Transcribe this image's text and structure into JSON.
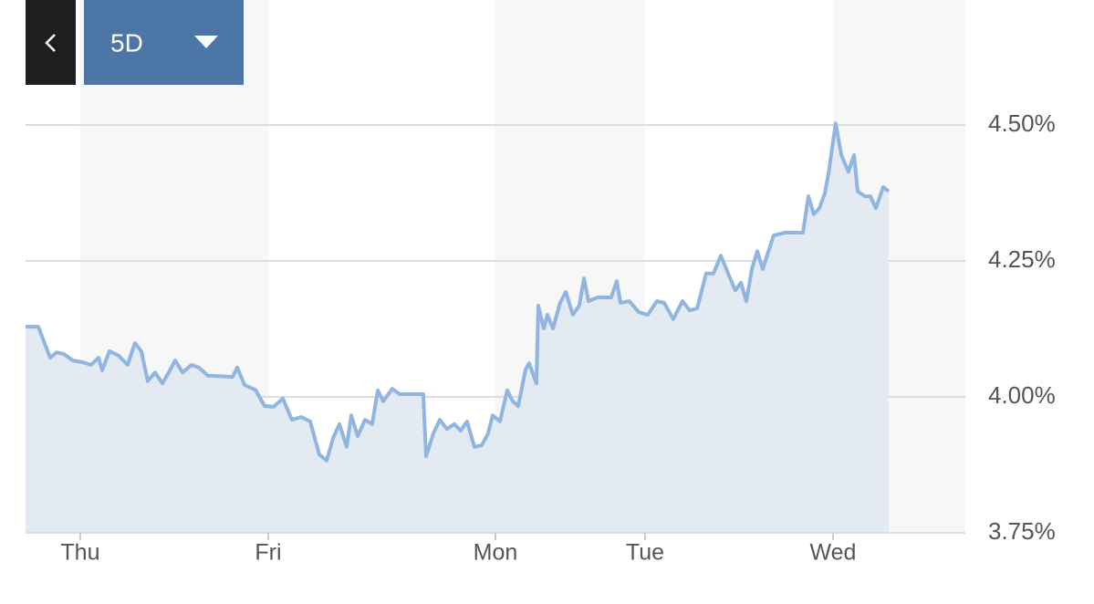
{
  "controls": {
    "range": "5D"
  },
  "chart_data": {
    "type": "line",
    "color": "#8fb5e0",
    "fill_color": "#e1e8f0",
    "band_color": "#f7f7f7",
    "grid": true,
    "xlim": [
      -0.291,
      4.709
    ],
    "xticks": [
      {
        "value": 0,
        "label": "Thu"
      },
      {
        "value": 1,
        "label": "Fri"
      },
      {
        "value": 2.209,
        "label": "Mon"
      },
      {
        "value": 3.005,
        "label": "Tue"
      },
      {
        "value": 4.005,
        "label": "Wed"
      }
    ],
    "ylim": [
      3.75,
      4.73
    ],
    "yticks": [
      {
        "value": 3.75,
        "label": "3.75%"
      },
      {
        "value": 4.0,
        "label": "4.00%"
      },
      {
        "value": 4.25,
        "label": "4.25%"
      },
      {
        "value": 4.5,
        "label": "4.50%"
      }
    ],
    "x": [
      -0.291,
      -0.223,
      -0.16,
      -0.126,
      -0.087,
      -0.039,
      0.01,
      0.058,
      0.097,
      0.117,
      0.155,
      0.204,
      0.252,
      0.291,
      0.325,
      0.359,
      0.398,
      0.437,
      0.471,
      0.505,
      0.544,
      0.592,
      0.631,
      0.68,
      0.811,
      0.835,
      0.874,
      0.932,
      0.981,
      1.029,
      1.078,
      1.126,
      1.175,
      1.223,
      1.272,
      1.311,
      1.345,
      1.379,
      1.417,
      1.442,
      1.476,
      1.515,
      1.553,
      1.583,
      1.612,
      1.66,
      1.699,
      1.825,
      1.84,
      1.879,
      1.913,
      1.951,
      1.99,
      2.024,
      2.058,
      2.097,
      2.136,
      2.17,
      2.194,
      2.233,
      2.272,
      2.301,
      2.33,
      2.369,
      2.388,
      2.427,
      2.437,
      2.466,
      2.485,
      2.515,
      2.553,
      2.583,
      2.621,
      2.655,
      2.68,
      2.704,
      2.752,
      2.825,
      2.854,
      2.874,
      2.922,
      2.971,
      3.019,
      3.068,
      3.107,
      3.155,
      3.204,
      3.243,
      3.282,
      3.33,
      3.369,
      3.408,
      3.447,
      3.485,
      3.515,
      3.544,
      3.573,
      3.602,
      3.631,
      3.689,
      3.748,
      3.845,
      3.874,
      3.903,
      3.932,
      3.961,
      3.981,
      4.019,
      4.049,
      4.087,
      4.117,
      4.136,
      4.175,
      4.204,
      4.233,
      4.272,
      4.301
    ],
    "values": [
      4.129,
      4.129,
      4.072,
      4.082,
      4.079,
      4.067,
      4.064,
      4.059,
      4.072,
      4.049,
      4.084,
      4.076,
      4.059,
      4.099,
      4.084,
      4.029,
      4.045,
      4.025,
      4.045,
      4.067,
      4.045,
      4.059,
      4.054,
      4.039,
      4.037,
      4.054,
      4.022,
      4.013,
      3.983,
      3.982,
      3.997,
      3.958,
      3.963,
      3.955,
      3.894,
      3.883,
      3.924,
      3.95,
      3.908,
      3.966,
      3.928,
      3.958,
      3.95,
      4.012,
      3.992,
      4.015,
      4.005,
      4.005,
      3.891,
      3.933,
      3.958,
      3.941,
      3.95,
      3.938,
      3.955,
      3.908,
      3.911,
      3.933,
      3.966,
      3.955,
      4.012,
      3.992,
      3.983,
      4.05,
      4.062,
      4.025,
      4.168,
      4.126,
      4.151,
      4.126,
      4.173,
      4.193,
      4.151,
      4.168,
      4.218,
      4.176,
      4.183,
      4.183,
      4.213,
      4.173,
      4.176,
      4.156,
      4.151,
      4.176,
      4.173,
      4.143,
      4.176,
      4.159,
      4.163,
      4.227,
      4.227,
      4.26,
      4.227,
      4.196,
      4.21,
      4.176,
      4.235,
      4.268,
      4.235,
      4.297,
      4.302,
      4.302,
      4.369,
      4.336,
      4.347,
      4.374,
      4.411,
      4.503,
      4.445,
      4.414,
      4.445,
      4.378,
      4.369,
      4.369,
      4.347,
      4.386,
      4.378
    ]
  }
}
